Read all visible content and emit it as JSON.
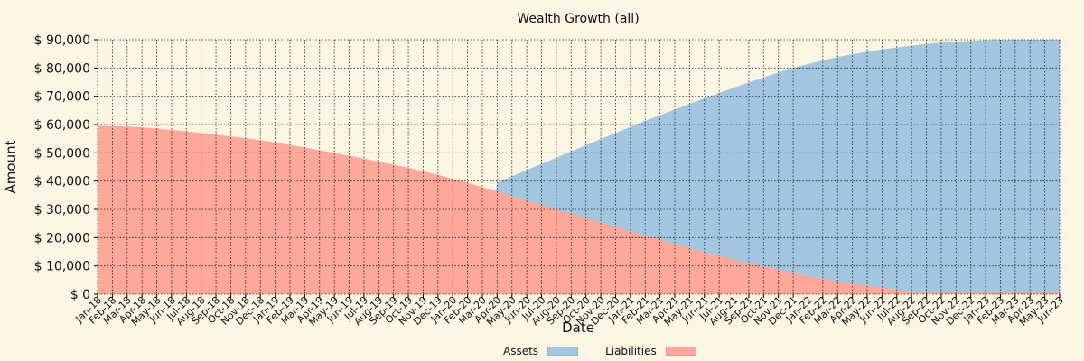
{
  "chart_data": {
    "type": "area",
    "title": "Wealth Growth (all)",
    "xlabel": "Date",
    "ylabel": "Amount",
    "ylim": [
      0,
      90000
    ],
    "yticks": [
      "$ 0",
      "$ 10,000",
      "$ 20,000",
      "$ 30,000",
      "$ 40,000",
      "$ 50,000",
      "$ 60,000",
      "$ 70,000",
      "$ 80,000",
      "$ 90,000"
    ],
    "x": [
      "Jan-18",
      "Feb-18",
      "Mar-18",
      "Apr-18",
      "May-18",
      "Jun-18",
      "Jul-18",
      "Aug-18",
      "Sep-18",
      "Oct-18",
      "Nov-18",
      "Dec-18",
      "Jan-19",
      "Feb-19",
      "Mar-19",
      "Apr-19",
      "May-19",
      "Jun-19",
      "Jul-19",
      "Aug-19",
      "Sep-19",
      "Oct-19",
      "Nov-19",
      "Dec-19",
      "Jan-20",
      "Feb-20",
      "Mar-20",
      "Apr-20",
      "May-20",
      "Jun-20",
      "Jul-20",
      "Aug-20",
      "Sep-20",
      "Oct-20",
      "Nov-20",
      "Dec-20",
      "Jan-21",
      "Feb-21",
      "Mar-21",
      "Apr-21",
      "May-21",
      "Jun-21",
      "Jul-21",
      "Aug-21",
      "Sep-21",
      "Oct-21",
      "Nov-21",
      "Dec-21",
      "Jan-22",
      "Feb-22",
      "Mar-22",
      "Apr-22",
      "May-22",
      "Jun-22",
      "Jul-22",
      "Aug-22",
      "Sep-22",
      "Oct-22",
      "Nov-22",
      "Dec-22",
      "Jan-23",
      "Feb-23",
      "Mar-23",
      "Apr-23",
      "May-23",
      "Jun-23"
    ],
    "series": [
      {
        "name": "Assets",
        "color": "#a3c6e0",
        "values": [
          0,
          0,
          0,
          0,
          0,
          0,
          0,
          0,
          0,
          0,
          0,
          0,
          0,
          0,
          0,
          0,
          0,
          0,
          0,
          0,
          0,
          0,
          0,
          0,
          0,
          0,
          0,
          39500,
          41700,
          43900,
          46100,
          48300,
          50500,
          52700,
          54900,
          57000,
          59200,
          61300,
          63300,
          65300,
          67300,
          69300,
          71200,
          73100,
          74900,
          76700,
          78400,
          80000,
          81400,
          82700,
          83900,
          84900,
          85800,
          86600,
          87300,
          87900,
          88500,
          89000,
          89300,
          89600,
          89800,
          89900,
          90000,
          90000,
          90000,
          90000
        ]
      },
      {
        "name": "Liabilities",
        "color": "#fda89a",
        "values": [
          59600,
          59400,
          59300,
          59000,
          58600,
          58100,
          57600,
          57000,
          56400,
          55800,
          55200,
          54500,
          53700,
          52800,
          51900,
          50900,
          49900,
          49000,
          48000,
          46900,
          45800,
          44700,
          43500,
          42200,
          40800,
          39400,
          37900,
          36400,
          34800,
          33200,
          31600,
          30000,
          28500,
          27000,
          25400,
          23800,
          22300,
          20800,
          19300,
          17800,
          16400,
          15000,
          13600,
          12300,
          11000,
          9800,
          8700,
          7600,
          6500,
          5500,
          4600,
          3800,
          3000,
          2300,
          1700,
          1100,
          1000,
          1000,
          1000,
          1000,
          1000,
          1000,
          1000,
          1000,
          1000,
          1000
        ]
      }
    ],
    "grid": true,
    "legend": "bottom-center"
  }
}
